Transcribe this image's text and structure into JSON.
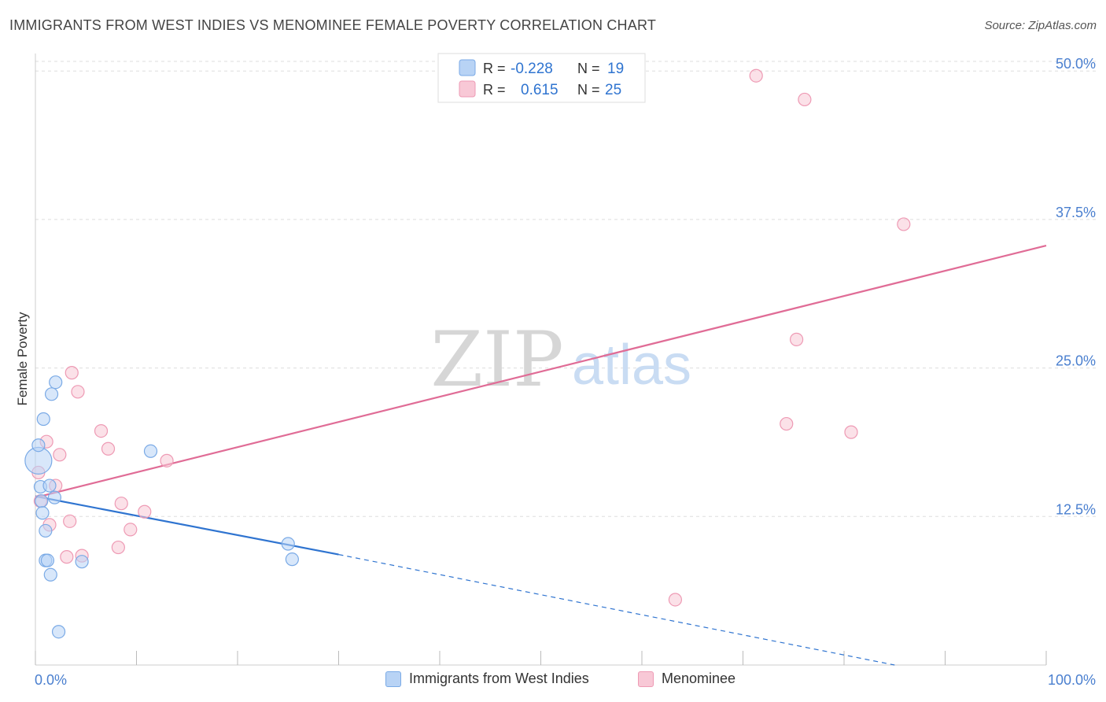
{
  "title": "IMMIGRANTS FROM WEST INDIES VS MENOMINEE FEMALE POVERTY CORRELATION CHART",
  "source": "Source: ZipAtlas.com",
  "watermark": {
    "zip": "ZIP",
    "atlas": "atlas"
  },
  "legend_top": [
    {
      "r_label": "R =",
      "r_value": "-0.228",
      "n_label": "N =",
      "n_value": "19"
    },
    {
      "r_label": "R =",
      "r_value": "0.615",
      "n_label": "N =",
      "n_value": "25"
    }
  ],
  "legend_bottom": [
    {
      "label": "Immigrants from West Indies"
    },
    {
      "label": "Menominee"
    }
  ],
  "colors": {
    "blue_fill": "#b8d3f5",
    "blue_stroke": "#7aaae6",
    "blue_line": "#2f74d0",
    "pink_fill": "#f8c8d6",
    "pink_stroke": "#ee9ab4",
    "pink_line": "#e06c96",
    "axis_text": "#4a7fcf",
    "grid": "#dddddd"
  },
  "chart_data": {
    "type": "scatter",
    "title": "IMMIGRANTS FROM WEST INDIES VS MENOMINEE FEMALE POVERTY CORRELATION CHART",
    "xlabel": "",
    "ylabel": "Female Poverty",
    "xlim": [
      0,
      100
    ],
    "ylim": [
      0,
      52
    ],
    "x_tick_labels": [
      "0.0%",
      "100.0%"
    ],
    "y_ticks": [
      12.5,
      25.0,
      37.5,
      50.0
    ],
    "y_tick_labels": [
      "12.5%",
      "25.0%",
      "37.5%",
      "50.0%"
    ],
    "grid": true,
    "legend_position": "top-center",
    "series": [
      {
        "name": "Immigrants from West Indies",
        "r": -0.228,
        "n": 19,
        "points": [
          [
            0.3,
            17.2
          ],
          [
            0.3,
            18.5
          ],
          [
            0.5,
            15.0
          ],
          [
            0.6,
            13.8
          ],
          [
            0.7,
            12.8
          ],
          [
            0.8,
            20.7
          ],
          [
            1.0,
            11.3
          ],
          [
            1.0,
            8.8
          ],
          [
            1.2,
            8.8
          ],
          [
            1.4,
            15.1
          ],
          [
            1.5,
            7.6
          ],
          [
            1.6,
            22.8
          ],
          [
            1.9,
            14.1
          ],
          [
            2.0,
            23.8
          ],
          [
            2.3,
            2.8
          ],
          [
            4.6,
            8.7
          ],
          [
            11.4,
            18.0
          ],
          [
            25.0,
            10.2
          ],
          [
            25.4,
            8.9
          ]
        ],
        "trend": {
          "x": [
            0,
            30
          ],
          "y": [
            14.2,
            9.3
          ],
          "dashed_to": [
            85,
            0.0
          ]
        }
      },
      {
        "name": "Menominee",
        "r": 0.615,
        "n": 25,
        "points": [
          [
            0.3,
            16.2
          ],
          [
            0.5,
            13.8
          ],
          [
            1.1,
            18.8
          ],
          [
            1.4,
            11.8
          ],
          [
            2.0,
            15.1
          ],
          [
            2.4,
            17.7
          ],
          [
            3.1,
            9.1
          ],
          [
            3.4,
            12.1
          ],
          [
            3.6,
            24.6
          ],
          [
            4.2,
            23.0
          ],
          [
            4.6,
            9.2
          ],
          [
            6.5,
            19.7
          ],
          [
            7.2,
            18.2
          ],
          [
            8.2,
            9.9
          ],
          [
            8.5,
            13.6
          ],
          [
            9.4,
            11.4
          ],
          [
            10.8,
            12.9
          ],
          [
            13.0,
            17.2
          ],
          [
            63.3,
            5.5
          ],
          [
            71.3,
            49.6
          ],
          [
            74.3,
            20.3
          ],
          [
            75.3,
            27.4
          ],
          [
            76.1,
            47.6
          ],
          [
            80.7,
            19.6
          ],
          [
            85.9,
            37.1
          ]
        ],
        "trend": {
          "x": [
            0,
            100
          ],
          "y": [
            14.1,
            35.3
          ]
        }
      }
    ]
  }
}
